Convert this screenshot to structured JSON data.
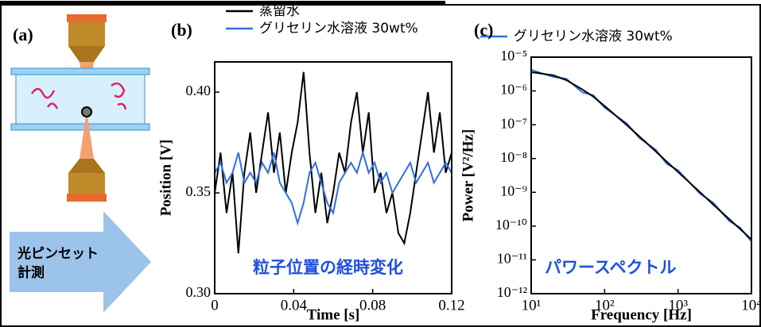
{
  "panel_a": {
    "label": "(a)",
    "arrow_text": [
      "光ピンセット",
      "計測"
    ]
  },
  "chart_data": [
    {
      "type": "line",
      "label": "(b)",
      "annotation": "粒子位置の経時変化",
      "x_label": "Time [s]",
      "y_label": "Position [V]",
      "x": [
        0,
        0.003,
        0.006,
        0.009,
        0.012,
        0.015,
        0.018,
        0.021,
        0.024,
        0.027,
        0.03,
        0.033,
        0.036,
        0.039,
        0.042,
        0.045,
        0.048,
        0.051,
        0.054,
        0.057,
        0.06,
        0.063,
        0.066,
        0.069,
        0.072,
        0.075,
        0.078,
        0.081,
        0.084,
        0.087,
        0.09,
        0.093,
        0.096,
        0.099,
        0.102,
        0.105,
        0.108,
        0.111,
        0.114,
        0.117,
        0.12
      ],
      "series": [
        {
          "name": "蒸留水",
          "color": "#000000",
          "values": [
            0.35,
            0.37,
            0.34,
            0.36,
            0.32,
            0.36,
            0.38,
            0.35,
            0.37,
            0.39,
            0.36,
            0.38,
            0.35,
            0.37,
            0.385,
            0.41,
            0.37,
            0.34,
            0.36,
            0.335,
            0.35,
            0.37,
            0.36,
            0.385,
            0.4,
            0.37,
            0.39,
            0.35,
            0.36,
            0.34,
            0.35,
            0.33,
            0.325,
            0.34,
            0.36,
            0.38,
            0.4,
            0.37,
            0.39,
            0.36,
            0.37
          ]
        },
        {
          "name": "グリセリン水溶液 30wt%",
          "color": "#2f6fe0",
          "values": [
            0.36,
            0.365,
            0.355,
            0.36,
            0.37,
            0.355,
            0.36,
            0.355,
            0.365,
            0.36,
            0.37,
            0.355,
            0.35,
            0.345,
            0.335,
            0.345,
            0.36,
            0.365,
            0.355,
            0.345,
            0.34,
            0.355,
            0.36,
            0.365,
            0.36,
            0.37,
            0.36,
            0.365,
            0.355,
            0.36,
            0.35,
            0.355,
            0.36,
            0.365,
            0.355,
            0.36,
            0.365,
            0.355,
            0.36,
            0.365,
            0.36
          ]
        }
      ],
      "xlim": [
        0,
        0.12
      ],
      "ylim": [
        0.3,
        0.415
      ],
      "xticks": [
        0,
        0.04,
        0.08,
        0.12
      ],
      "yticks": [
        {
          "value": 0.3,
          "label": "0.30"
        },
        0.35,
        {
          "value": 0.4,
          "label": "0.40"
        }
      ]
    },
    {
      "type": "line",
      "label": "(c)",
      "annotation": "パワースペクトル",
      "x_label": "Frequency [Hz]",
      "y_label": "Power [V²/Hz]",
      "xscale": "log",
      "yscale": "log",
      "x": [
        10,
        20,
        30,
        50,
        70,
        100,
        200,
        300,
        500,
        700,
        1000,
        2000,
        3000,
        5000,
        7000,
        10000
      ],
      "series": [
        {
          "name": "グリセリン水溶液 30wt%",
          "color": "#2f6fe0",
          "values": [
            4.2e-06,
            2.6e-06,
            2.3e-06,
            9e-07,
            7.5e-07,
            3.2e-07,
            1.1e-07,
            4e-08,
            1.8e-08,
            7e-09,
            4.5e-09,
            9e-10,
            5e-10,
            1.4e-10,
            9e-11,
            3.5e-11
          ]
        },
        {
          "color": "#000000",
          "values": [
            3.6e-06,
            2.9e-06,
            2.1e-06,
            1.1e-06,
            6.8e-07,
            3.6e-07,
            9.8e-08,
            4.4e-08,
            1.6e-08,
            8.1e-09,
            4e-09,
            1e-09,
            4.4e-10,
            1.6e-10,
            8.2e-11,
            4e-11
          ]
        }
      ],
      "xlim": [
        10,
        10000
      ],
      "ylim": [
        1e-12,
        1e-05
      ],
      "xticks": [
        {
          "value": 10,
          "label": "10¹"
        },
        {
          "value": 100,
          "label": "10²"
        },
        {
          "value": 1000,
          "label": "10³"
        },
        {
          "value": 10000,
          "label": "10⁴"
        }
      ],
      "yticks": [
        {
          "value": 1e-12,
          "label": "10⁻¹²"
        },
        {
          "value": 1e-11,
          "label": "10⁻¹¹"
        },
        {
          "value": 1e-10,
          "label": "10⁻¹⁰"
        },
        {
          "value": 1e-09,
          "label": "10⁻⁹"
        },
        {
          "value": 1e-08,
          "label": "10⁻⁸"
        },
        {
          "value": 1e-07,
          "label": "10⁻⁷"
        },
        {
          "value": 1e-06,
          "label": "10⁻⁶"
        },
        {
          "value": 1e-05,
          "label": "10⁻⁵"
        }
      ]
    }
  ]
}
